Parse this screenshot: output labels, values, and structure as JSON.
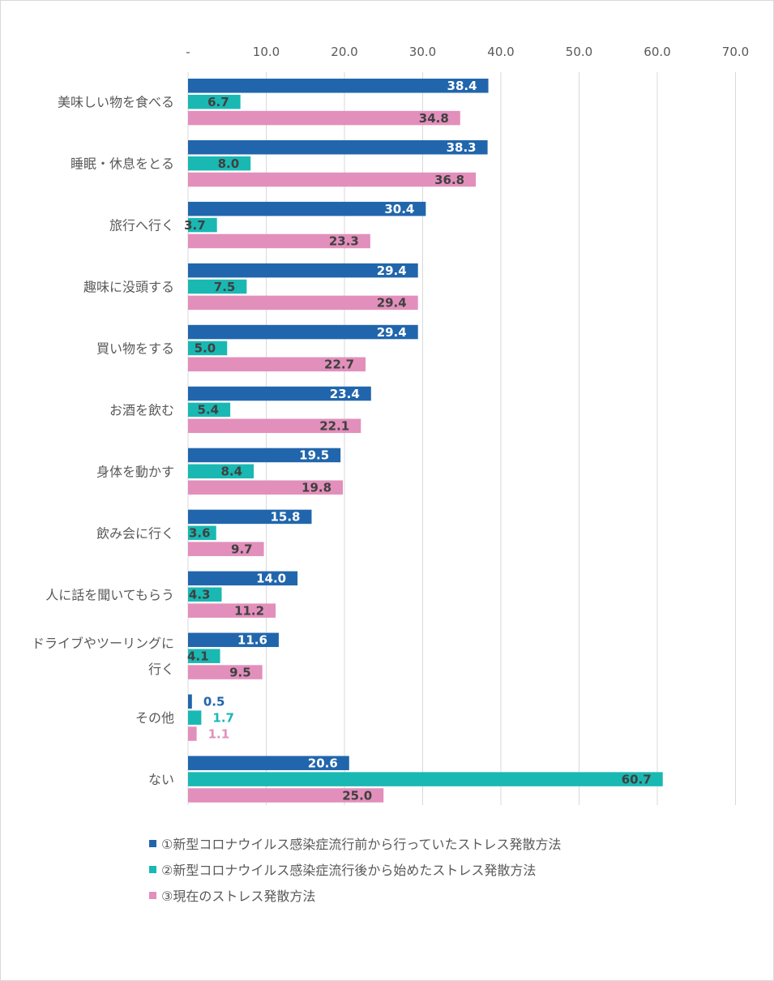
{
  "chart_data": {
    "type": "bar",
    "orientation": "horizontal",
    "title": "",
    "xlabel": "",
    "ylabel": "",
    "xlim": [
      0,
      70
    ],
    "x_ticks": [
      "-",
      "10.0",
      "20.0",
      "30.0",
      "40.0",
      "50.0",
      "60.0",
      "70.0"
    ],
    "grid": true,
    "legend_position": "bottom",
    "categories": [
      [
        "美味しい物を食べる"
      ],
      [
        "睡眠・休息をとる"
      ],
      [
        "旅行へ行く"
      ],
      [
        "趣味に没頭する"
      ],
      [
        "買い物をする"
      ],
      [
        "お酒を飲む"
      ],
      [
        "身体を動かす"
      ],
      [
        "飲み会に行く"
      ],
      [
        "人に話を聞いてもらう"
      ],
      [
        "ドライブやツーリングに",
        "行く"
      ],
      [
        "その他"
      ],
      [
        "ない"
      ]
    ],
    "series": [
      {
        "name": "①新型コロナウイルス感染症流行前から行っていたストレス発散方法",
        "color": "#2166ac",
        "label_color_inside": "#ffffff",
        "values": [
          38.4,
          38.3,
          30.4,
          29.4,
          29.4,
          23.4,
          19.5,
          15.8,
          14.0,
          11.6,
          0.5,
          20.6
        ],
        "labels": [
          "38.4",
          "38.3",
          "30.4",
          "29.4",
          "29.4",
          "23.4",
          "19.5",
          "15.8",
          "14.0",
          "11.6",
          "0.5",
          "20.6"
        ]
      },
      {
        "name": "②新型コロナウイルス感染症流行後から始めたストレス発散方法",
        "color": "#1ab8b3",
        "label_color_inside": "#404040",
        "values": [
          6.7,
          8.0,
          3.7,
          7.5,
          5.0,
          5.4,
          8.4,
          3.6,
          4.3,
          4.1,
          1.7,
          60.7
        ],
        "labels": [
          "6.7",
          "8.0",
          "3.7",
          "7.5",
          "5.0",
          "5.4",
          "8.4",
          "3.6",
          "4.3",
          "4.1",
          "1.7",
          "60.7"
        ]
      },
      {
        "name": "③現在のストレス発散方法",
        "color": "#e28fbb",
        "label_color_inside": "#404040",
        "values": [
          34.8,
          36.8,
          23.3,
          29.4,
          22.7,
          22.1,
          19.8,
          9.7,
          11.2,
          9.5,
          1.1,
          25.0
        ],
        "labels": [
          "34.8",
          "36.8",
          "23.3",
          "29.4",
          "22.7",
          "22.1",
          "19.8",
          "9.7",
          "11.2",
          "9.5",
          "1.1",
          "25.0"
        ]
      }
    ]
  }
}
